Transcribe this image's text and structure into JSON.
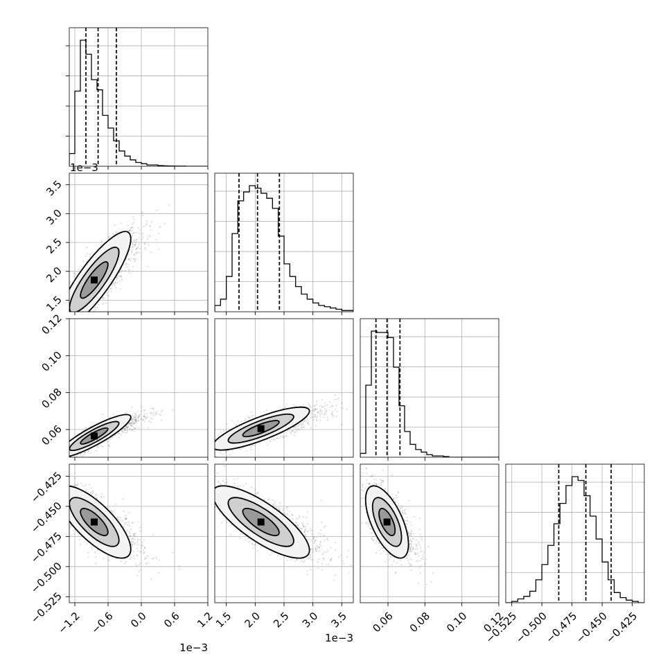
{
  "chart_data": {
    "type": "corner",
    "grid": true,
    "parameters": [
      {
        "range": [
          -1.3,
          1.2
        ],
        "ticks": [
          -1.2,
          -0.6,
          0.0,
          0.6,
          1.2
        ],
        "tick_labels": [
          "−1.2",
          "−0.6",
          "0.0",
          "0.6",
          "1.2"
        ],
        "offset_label": "1e−3",
        "quantiles": [
          -1.0,
          -0.78,
          -0.45
        ]
      },
      {
        "range": [
          1.3,
          3.7
        ],
        "ticks": [
          1.5,
          2.0,
          2.5,
          3.0,
          3.5
        ],
        "tick_labels": [
          "1.5",
          "2.0",
          "2.5",
          "3.0",
          "3.5"
        ],
        "offset_label": "1e−3",
        "quantiles": [
          1.72,
          2.04,
          2.42
        ]
      },
      {
        "range": [
          0.045,
          0.12
        ],
        "ticks": [
          0.06,
          0.08,
          0.1,
          0.12
        ],
        "tick_labels": [
          "0.06",
          "0.08",
          "0.10",
          "0.12"
        ],
        "offset_label": "",
        "quantiles": [
          0.0535,
          0.0595,
          0.0665
        ]
      },
      {
        "range": [
          -0.53,
          -0.415
        ],
        "ticks": [
          -0.525,
          -0.5,
          -0.475,
          -0.45,
          -0.425
        ],
        "tick_labels": [
          "−0.525",
          "−0.500",
          "−0.475",
          "−0.450",
          "−0.425"
        ],
        "offset_label": "",
        "quantiles": [
          -0.486,
          -0.4635,
          -0.4425
        ]
      }
    ],
    "histograms": [
      {
        "bin_edges": [
          -1.3,
          -1.2,
          -1.1,
          -1.0,
          -0.9,
          -0.8,
          -0.7,
          -0.6,
          -0.5,
          -0.4,
          -0.3,
          -0.2,
          -0.1,
          0.0,
          0.1,
          0.2,
          0.3,
          0.4,
          0.5,
          0.6,
          0.7,
          0.8,
          0.9,
          1.0,
          1.1,
          1.2
        ],
        "counts": [
          0.1,
          0.59,
          0.99,
          0.88,
          0.68,
          0.6,
          0.4,
          0.3,
          0.2,
          0.12,
          0.08,
          0.05,
          0.03,
          0.02,
          0.01,
          0.01,
          0.005,
          0.003,
          0.002,
          0.001,
          0.001,
          0,
          0,
          0,
          0
        ]
      },
      {
        "bin_edges": [
          1.3,
          1.4,
          1.5,
          1.6,
          1.7,
          1.8,
          1.9,
          2.0,
          2.1,
          2.2,
          2.3,
          2.4,
          2.5,
          2.6,
          2.7,
          2.8,
          2.9,
          3.0,
          3.1,
          3.2,
          3.3,
          3.4,
          3.5,
          3.6,
          3.7
        ],
        "counts": [
          0.05,
          0.1,
          0.28,
          0.62,
          0.88,
          0.95,
          1.0,
          0.98,
          0.94,
          0.9,
          0.82,
          0.6,
          0.38,
          0.28,
          0.2,
          0.14,
          0.1,
          0.07,
          0.05,
          0.04,
          0.03,
          0.02,
          0.01,
          0.01
        ]
      },
      {
        "bin_edges": [
          0.045,
          0.048,
          0.051,
          0.054,
          0.057,
          0.06,
          0.063,
          0.066,
          0.069,
          0.072,
          0.075,
          0.078,
          0.081,
          0.084,
          0.087,
          0.09,
          0.093,
          0.096,
          0.099,
          0.102,
          0.105,
          0.108,
          0.111,
          0.114,
          0.117,
          0.12
        ],
        "counts": [
          0.03,
          0.56,
          0.98,
          0.97,
          0.97,
          0.93,
          0.7,
          0.4,
          0.2,
          0.1,
          0.06,
          0.04,
          0.02,
          0.01,
          0.01,
          0.005,
          0,
          0,
          0,
          0,
          0,
          0,
          0,
          0,
          0
        ]
      },
      {
        "bin_edges": [
          -0.53,
          -0.525,
          -0.52,
          -0.515,
          -0.51,
          -0.505,
          -0.5,
          -0.495,
          -0.49,
          -0.485,
          -0.48,
          -0.475,
          -0.47,
          -0.465,
          -0.46,
          -0.455,
          -0.45,
          -0.445,
          -0.44,
          -0.435,
          -0.43,
          -0.425,
          -0.42,
          -0.415
        ],
        "counts": [
          0,
          0.01,
          0.03,
          0.05,
          0.09,
          0.18,
          0.3,
          0.45,
          0.62,
          0.78,
          0.92,
          0.99,
          0.96,
          0.84,
          0.68,
          0.5,
          0.32,
          0.18,
          0.08,
          0.04,
          0.02,
          0.01,
          0
        ]
      }
    ],
    "pairs": [
      {
        "x": 0,
        "y": 1,
        "center": [
          -0.85,
          1.85
        ],
        "spread": [
          0.33,
          0.42
        ],
        "rho": 0.85
      },
      {
        "x": 0,
        "y": 2,
        "center": [
          -0.85,
          0.0565
        ],
        "spread": [
          0.33,
          0.0058
        ],
        "rho": 0.88
      },
      {
        "x": 1,
        "y": 2,
        "center": [
          2.1,
          0.0605
        ],
        "spread": [
          0.42,
          0.0058
        ],
        "rho": 0.82
      },
      {
        "x": 0,
        "y": 3,
        "center": [
          -0.85,
          -0.463
        ],
        "spread": [
          0.33,
          0.015
        ],
        "rho": -0.75
      },
      {
        "x": 1,
        "y": 3,
        "center": [
          2.1,
          -0.463
        ],
        "spread": [
          0.42,
          0.015
        ],
        "rho": -0.78
      },
      {
        "x": 2,
        "y": 3,
        "center": [
          0.0595,
          -0.463
        ],
        "spread": [
          0.0058,
          0.015
        ],
        "rho": -0.62
      }
    ]
  }
}
